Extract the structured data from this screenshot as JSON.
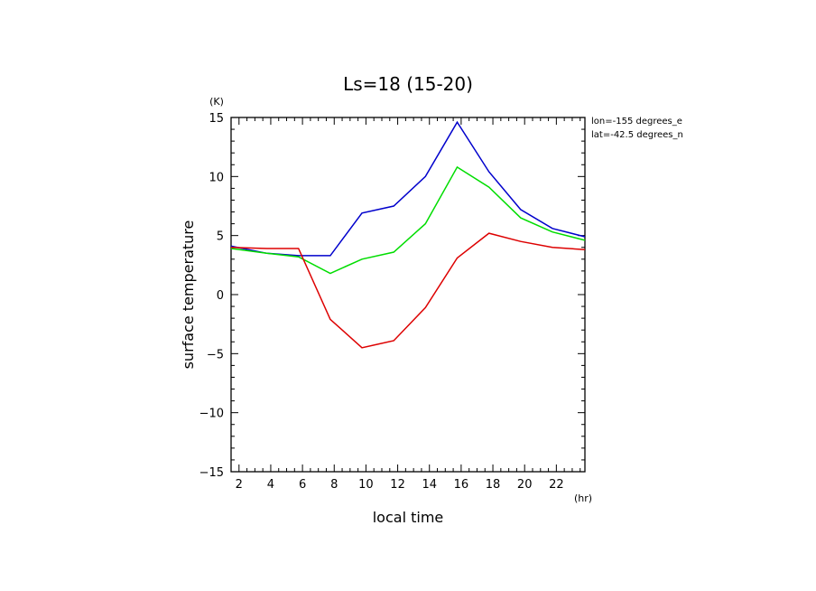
{
  "chart_data": {
    "type": "line",
    "title": "Ls=18 (15-20)",
    "xlabel": "local time",
    "ylabel": "surface temperature",
    "x_unit": "(hr)",
    "y_unit": "(K)",
    "annotations": [
      "lon=-155 degrees_e",
      "lat=-42.5 degrees_n"
    ],
    "xlim": [
      1.5,
      23.8
    ],
    "ylim": [
      -15,
      15
    ],
    "x_ticks": [
      2,
      4,
      6,
      8,
      10,
      12,
      14,
      16,
      18,
      20,
      22
    ],
    "y_ticks": [
      -15,
      -10,
      -5,
      0,
      5,
      10,
      15
    ],
    "grid": false,
    "x": [
      1.5,
      3.75,
      5.75,
      7.75,
      9.75,
      11.75,
      13.75,
      15.75,
      17.75,
      19.75,
      21.75,
      23.8
    ],
    "series": [
      {
        "color": "#0000cc",
        "values": [
          4.1,
          3.5,
          3.3,
          3.3,
          6.9,
          7.5,
          10.0,
          14.6,
          10.4,
          7.2,
          5.6,
          4.9
        ]
      },
      {
        "color": "#00dd00",
        "values": [
          3.9,
          3.5,
          3.2,
          1.8,
          3.0,
          3.6,
          6.0,
          10.8,
          9.1,
          6.5,
          5.3,
          4.6
        ]
      },
      {
        "color": "#dd0000",
        "values": [
          4.0,
          3.9,
          3.9,
          -2.1,
          -4.5,
          -3.9,
          -1.1,
          3.1,
          5.2,
          4.5,
          4.0,
          3.8
        ]
      }
    ]
  }
}
